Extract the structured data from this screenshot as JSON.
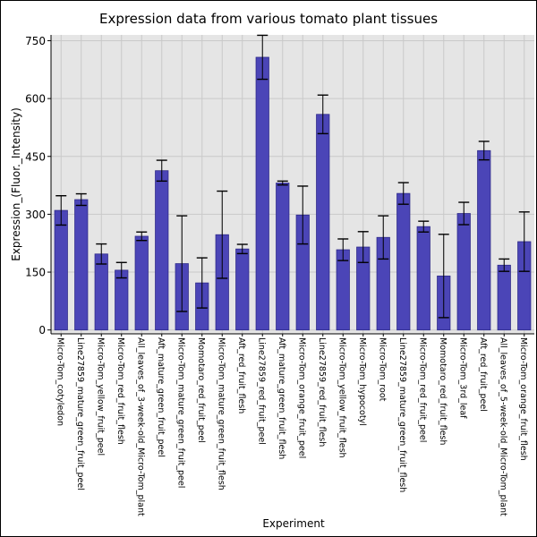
{
  "chart_data": {
    "type": "bar",
    "title": "Expression data from various tomato plant tissues",
    "xlabel": "Experiment",
    "ylabel": "Expression_(Fluor._Intensity)",
    "ylim": [
      -10,
      765
    ],
    "yticks": [
      0,
      150,
      300,
      450,
      600,
      750
    ],
    "grid": true,
    "categories": [
      "Micro-Tom_cotyledon",
      "Line27859_mature_green_fruit_peel",
      "Micro-Tom_yellow_fruit_peel",
      "Micro-Tom_red_fruit_flesh",
      "All_leaves_of_3-week-old_Micro-Tom_plant",
      "Aft_mature_green_fruit_peel",
      "Micro-Tom_mature_green_fruit_peel",
      "Momotaro_red_fruit_peel",
      "Micro-Tom_mature_green_fruit_flesh",
      "Aft_red_fruit_flesh",
      "Line27859_red_fruit_peel",
      "Aft_mature_green_fruit_flesh",
      "Micro-Tom_orange_fruit_peel",
      "Line27859_red_fruit_flesh",
      "Micro-Tom_yellow_fruit_flesh",
      "Micro-Tom_hypocotyl",
      "Micro-Tom_root",
      "Line27859_mature_green_fruit_flesh",
      "Micro-Tom_red_fruit_peel",
      "Momotaro_red_fruit_flesh",
      "Micro-Tom_3rd_leaf",
      "Aft_red_fruit_peel",
      "All_leaves_of_5-week-old_Micro-Tom_plant",
      "Micro-Tom_orange_fruit_flesh"
    ],
    "values": [
      310,
      338,
      197,
      155,
      243,
      413,
      172,
      122,
      247,
      210,
      707,
      381,
      298,
      559,
      208,
      215,
      240,
      354,
      268,
      140,
      302,
      465,
      168,
      229
    ],
    "errors": [
      38,
      15,
      26,
      20,
      11,
      27,
      124,
      65,
      113,
      12,
      57,
      5,
      75,
      50,
      28,
      40,
      56,
      28,
      14,
      108,
      29,
      24,
      16,
      77
    ],
    "colors": {
      "bar": "#4b45b7",
      "bar_edge": "#2e2a8a",
      "plot_bg": "#e5e5e5",
      "grid": "#c9c9c9"
    }
  }
}
